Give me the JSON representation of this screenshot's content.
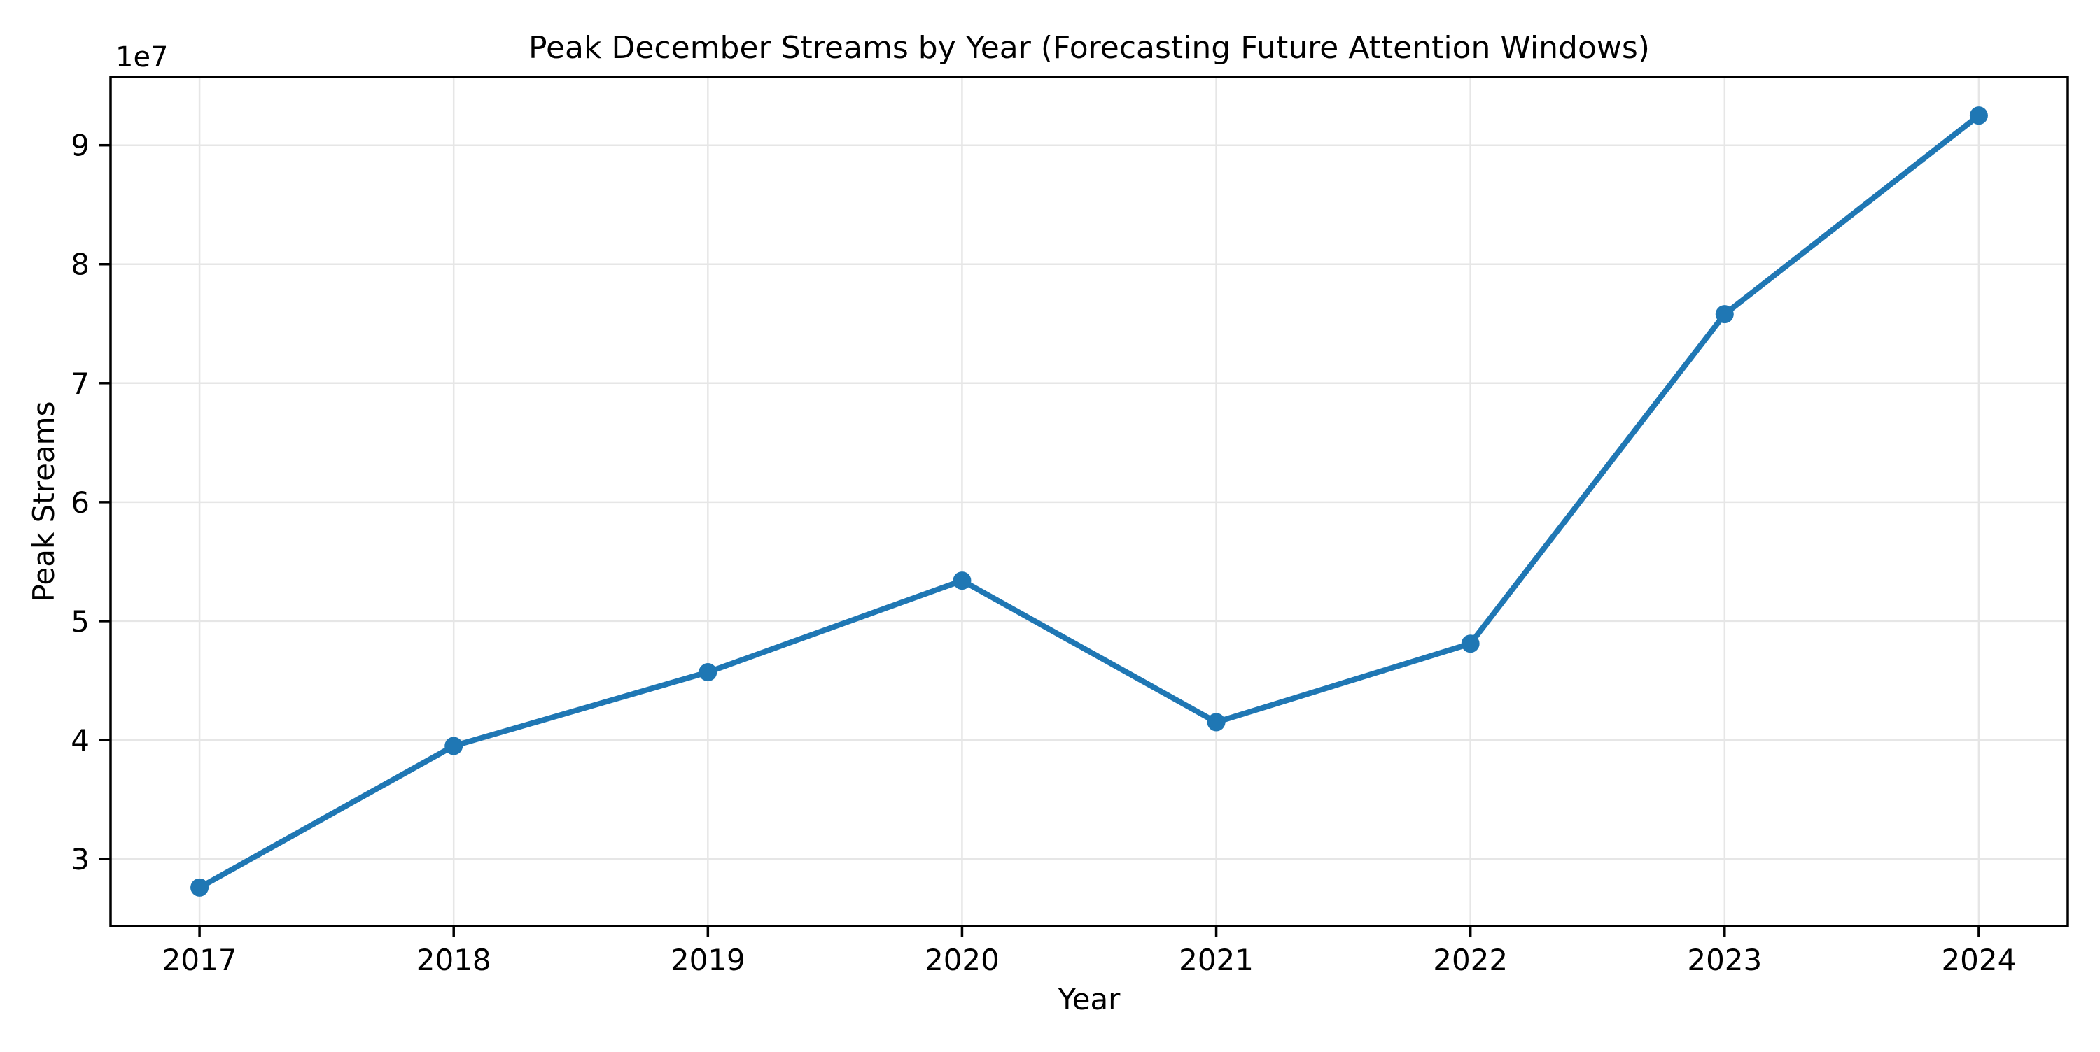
{
  "chart_data": {
    "type": "line",
    "title": "Peak December Streams by Year (Forecasting Future Attention Windows)",
    "xlabel": "Year",
    "ylabel": "Peak Streams",
    "x": [
      2017,
      2018,
      2019,
      2020,
      2021,
      2022,
      2023,
      2024
    ],
    "series": [
      {
        "name": "Peak Streams",
        "values": [
          27600000,
          39500000,
          45700000,
          53400000,
          41500000,
          48100000,
          75800000,
          92500000
        ]
      }
    ],
    "xticks": [
      2017,
      2018,
      2019,
      2020,
      2021,
      2022,
      2023,
      2024
    ],
    "xtick_labels": [
      "2017",
      "2018",
      "2019",
      "2020",
      "2021",
      "2022",
      "2023",
      "2024"
    ],
    "yticks": [
      30000000,
      40000000,
      50000000,
      60000000,
      70000000,
      80000000,
      90000000
    ],
    "ytick_labels": [
      "3",
      "4",
      "5",
      "6",
      "7",
      "8",
      "9"
    ],
    "y_offset_text": "1e7",
    "xlim": [
      2016.65,
      2024.35
    ],
    "ylim": [
      24355000,
      95745000
    ],
    "grid": true,
    "legend_position": "none",
    "line_color": "#1f77b4",
    "marker_color": "#1f77b4",
    "grid_color": "#e6e6e6",
    "axis_color": "#000000",
    "background_color": "#ffffff",
    "marker": "o"
  }
}
